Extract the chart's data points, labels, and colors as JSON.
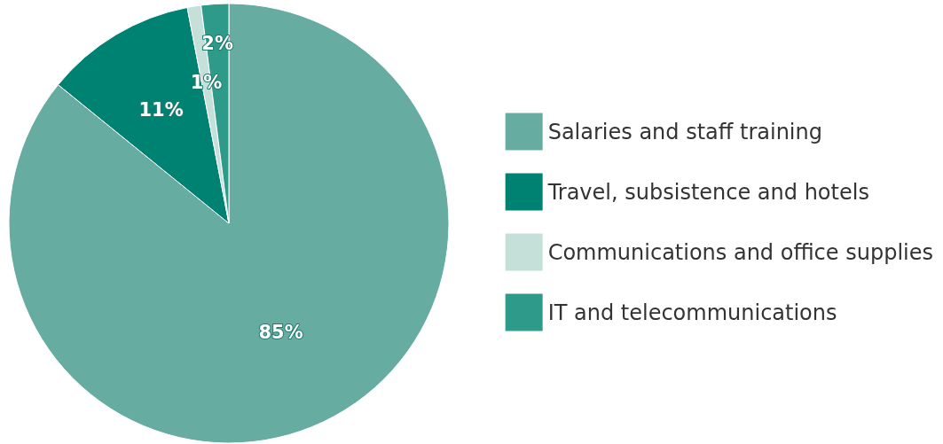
{
  "chart_data": {
    "type": "pie",
    "categories": [
      "Salaries and staff training",
      "Travel, subsistence and hotels",
      "Communications and office supplies",
      "IT and telecommunications"
    ],
    "values": [
      85,
      11,
      1,
      2
    ],
    "value_labels": [
      "85%",
      "11%",
      "1%",
      "2%"
    ],
    "colors": [
      "#66aca1",
      "#008272",
      "#c5dfd9",
      "#2e9a8a"
    ],
    "legend": "right"
  }
}
